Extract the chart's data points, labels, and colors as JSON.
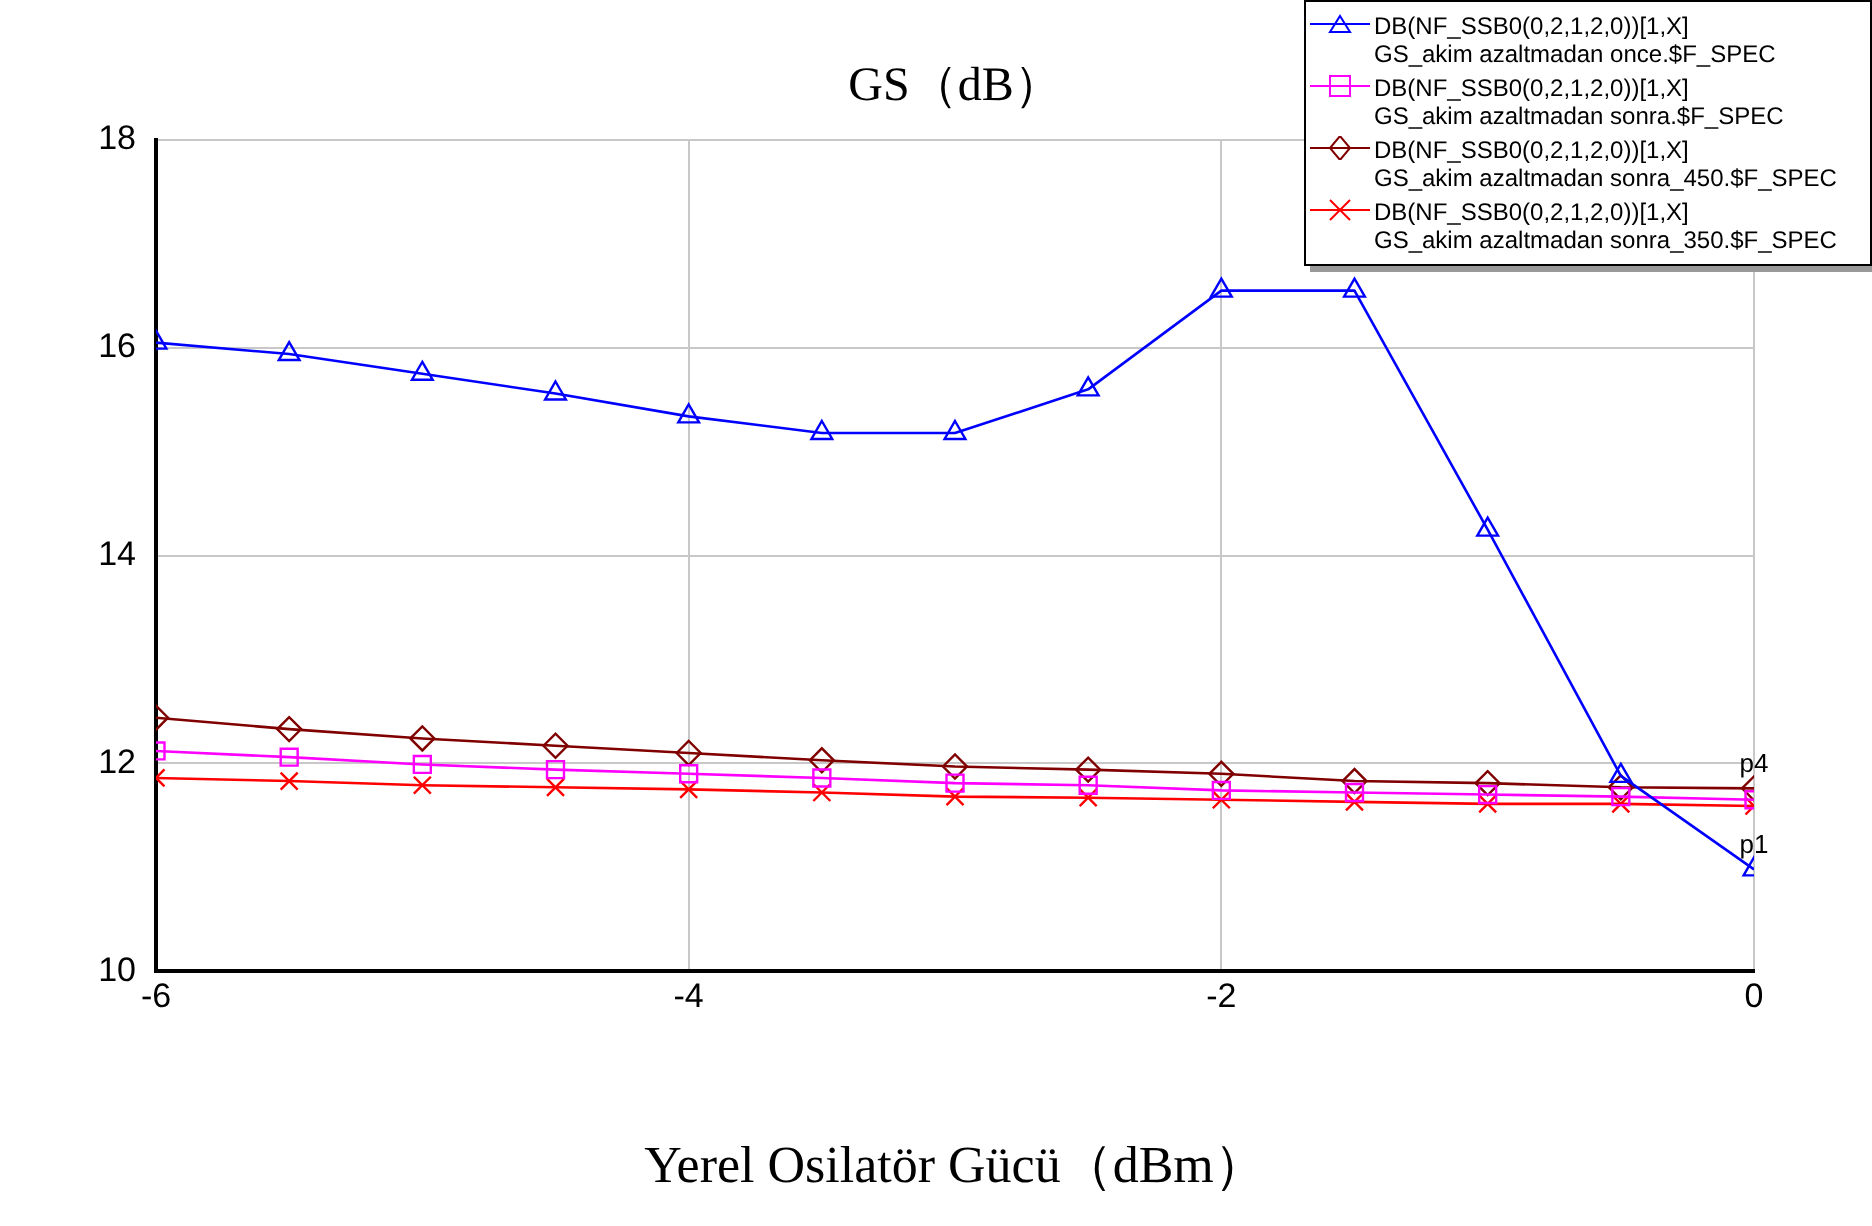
{
  "chart_data": {
    "type": "line",
    "title": "GS（dB）",
    "xlabel": "Yerel Osilatör Gücü（dBm）",
    "x": [
      -6,
      -5.5,
      -5,
      -4.5,
      -4,
      -3.5,
      -3,
      -2.5,
      -2,
      -1.5,
      -1,
      -0.5,
      0
    ],
    "series": [
      {
        "name": "DB(NF_SSB0(0,2,1,2,0))[1,X]\nGS_akim azaltmadan once.$F_SPEC",
        "color": "#0000ff",
        "marker": "triangle",
        "values": [
          16.05,
          15.94,
          15.75,
          15.56,
          15.34,
          15.18,
          15.18,
          15.6,
          16.55,
          16.55,
          14.25,
          11.88,
          10.98
        ]
      },
      {
        "name": "DB(NF_SSB0(0,2,1,2,0))[1,X]\nGS_akim azaltmadan sonra.$F_SPEC",
        "color": "#ff00ff",
        "marker": "square",
        "values": [
          12.12,
          12.06,
          11.99,
          11.94,
          11.9,
          11.86,
          11.81,
          11.79,
          11.74,
          11.72,
          11.7,
          11.68,
          11.65
        ]
      },
      {
        "name": "DB(NF_SSB0(0,2,1,2,0))[1,X]\nGS_akim azaltmadan sonra_450.$F_SPEC",
        "color": "#800000",
        "marker": "diamond",
        "values": [
          12.44,
          12.33,
          12.24,
          12.17,
          12.1,
          12.03,
          11.97,
          11.94,
          11.9,
          11.83,
          11.81,
          11.77,
          11.76
        ]
      },
      {
        "name": "DB(NF_SSB0(0,2,1,2,0))[1,X]\nGS_akim azaltmadan sonra_350.$F_SPEC",
        "color": "#ff0000",
        "marker": "cross",
        "values": [
          11.86,
          11.83,
          11.79,
          11.77,
          11.75,
          11.72,
          11.68,
          11.67,
          11.65,
          11.63,
          11.61,
          11.61,
          11.59
        ]
      }
    ],
    "xlim": [
      -6,
      0
    ],
    "xticks": [
      -6,
      -4,
      -2,
      0
    ],
    "ylim": [
      10,
      18
    ],
    "yticks": [
      10,
      12,
      14,
      16,
      18
    ],
    "annotations": [
      {
        "text": "p1",
        "x": 0,
        "y": 10.98
      },
      {
        "text": "p4",
        "x": 0,
        "y": 11.76
      }
    ],
    "grid": true,
    "legend": "top right",
    "line_style": "solid"
  }
}
